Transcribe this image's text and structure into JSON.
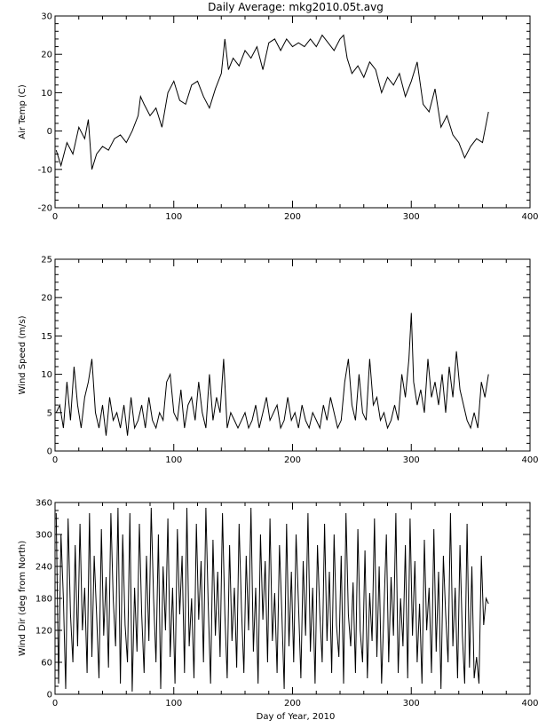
{
  "title": "Daily Average: mkg2010.05t.avg",
  "xlabel": "Day of Year, 2010",
  "chart_data": [
    {
      "type": "line",
      "ylabel": "Air Temp (C)",
      "xlim": [
        0,
        400
      ],
      "ylim": [
        -20,
        30
      ],
      "xticks": [
        0,
        100,
        200,
        300,
        400
      ],
      "yticks": [
        -20,
        -10,
        0,
        10,
        20,
        30
      ],
      "grid": false,
      "x": [
        1,
        5,
        10,
        15,
        20,
        25,
        28,
        31,
        35,
        40,
        45,
        50,
        55,
        60,
        65,
        70,
        72,
        75,
        80,
        85,
        90,
        95,
        100,
        105,
        110,
        115,
        120,
        125,
        130,
        135,
        140,
        143,
        146,
        150,
        155,
        160,
        165,
        170,
        175,
        180,
        185,
        190,
        195,
        200,
        205,
        210,
        215,
        220,
        225,
        230,
        235,
        240,
        243,
        246,
        250,
        255,
        260,
        265,
        270,
        275,
        280,
        285,
        290,
        295,
        300,
        305,
        310,
        315,
        320,
        325,
        330,
        335,
        340,
        345,
        350,
        355,
        360,
        365
      ],
      "y": [
        -5,
        -9,
        -3,
        -6,
        1,
        -2,
        3,
        -10,
        -6,
        -4,
        -5,
        -2,
        -1,
        -3,
        0,
        4,
        9,
        7,
        4,
        6,
        1,
        10,
        13,
        8,
        7,
        12,
        13,
        9,
        6,
        11,
        15,
        24,
        16,
        19,
        17,
        21,
        19,
        22,
        16,
        23,
        24,
        21,
        24,
        22,
        23,
        22,
        24,
        22,
        25,
        23,
        21,
        24,
        25,
        19,
        15,
        17,
        14,
        18,
        16,
        10,
        14,
        12,
        15,
        9,
        13,
        18,
        7,
        5,
        11,
        1,
        4,
        -1,
        -3,
        -7,
        -4,
        -2,
        -3,
        5
      ]
    },
    {
      "type": "line",
      "ylabel": "Wind Speed (m/s)",
      "xlim": [
        0,
        400
      ],
      "ylim": [
        0,
        25
      ],
      "xticks": [
        0,
        100,
        200,
        300,
        400
      ],
      "yticks": [
        0,
        5,
        10,
        15,
        20,
        25
      ],
      "grid": false,
      "x": [
        1,
        4,
        7,
        10,
        13,
        16,
        19,
        22,
        25,
        28,
        31,
        34,
        37,
        40,
        43,
        46,
        49,
        52,
        55,
        58,
        61,
        64,
        67,
        70,
        73,
        76,
        79,
        82,
        85,
        88,
        91,
        94,
        97,
        100,
        103,
        106,
        109,
        112,
        115,
        118,
        121,
        124,
        127,
        130,
        133,
        136,
        139,
        142,
        145,
        148,
        151,
        154,
        157,
        160,
        163,
        166,
        169,
        172,
        175,
        178,
        181,
        184,
        187,
        190,
        193,
        196,
        199,
        202,
        205,
        208,
        211,
        214,
        217,
        220,
        223,
        226,
        229,
        232,
        235,
        238,
        241,
        244,
        247,
        250,
        253,
        256,
        259,
        262,
        265,
        268,
        271,
        274,
        277,
        280,
        283,
        286,
        289,
        292,
        295,
        298,
        300,
        302,
        305,
        308,
        311,
        314,
        317,
        320,
        323,
        326,
        329,
        332,
        335,
        338,
        341,
        344,
        347,
        350,
        353,
        356,
        359,
        362,
        365
      ],
      "y": [
        5,
        6,
        3,
        9,
        4,
        11,
        6,
        3,
        7,
        9,
        12,
        5,
        3,
        6,
        2,
        7,
        4,
        5,
        3,
        6,
        2,
        7,
        3,
        4,
        6,
        3,
        7,
        4,
        3,
        5,
        4,
        9,
        10,
        5,
        4,
        8,
        3,
        6,
        7,
        4,
        9,
        5,
        3,
        10,
        4,
        7,
        5,
        12,
        3,
        5,
        4,
        3,
        4,
        5,
        3,
        4,
        6,
        3,
        5,
        7,
        4,
        5,
        6,
        3,
        4,
        7,
        4,
        5,
        3,
        6,
        4,
        3,
        5,
        4,
        3,
        6,
        4,
        7,
        5,
        3,
        4,
        9,
        12,
        6,
        4,
        10,
        5,
        4,
        12,
        6,
        7,
        4,
        5,
        3,
        4,
        6,
        4,
        10,
        7,
        12,
        18,
        9,
        6,
        8,
        5,
        12,
        7,
        9,
        6,
        10,
        5,
        11,
        7,
        13,
        8,
        6,
        4,
        3,
        5,
        3,
        9,
        7,
        10
      ]
    },
    {
      "type": "line",
      "ylabel": "Wind Dir (deg from North)",
      "xlim": [
        0,
        400
      ],
      "ylim": [
        0,
        360
      ],
      "xticks": [
        0,
        100,
        200,
        300,
        400
      ],
      "yticks": [
        0,
        60,
        120,
        180,
        240,
        300,
        360
      ],
      "grid": false,
      "x": [
        1,
        3,
        5,
        7,
        9,
        11,
        13,
        15,
        17,
        19,
        21,
        23,
        25,
        27,
        29,
        31,
        33,
        35,
        37,
        39,
        41,
        43,
        45,
        47,
        49,
        51,
        53,
        55,
        57,
        59,
        61,
        63,
        65,
        67,
        69,
        71,
        73,
        75,
        77,
        79,
        81,
        83,
        85,
        87,
        89,
        91,
        93,
        95,
        97,
        99,
        101,
        103,
        105,
        107,
        109,
        111,
        113,
        115,
        117,
        119,
        121,
        123,
        125,
        127,
        129,
        131,
        133,
        135,
        137,
        139,
        141,
        143,
        145,
        147,
        149,
        151,
        153,
        155,
        157,
        159,
        161,
        163,
        165,
        167,
        169,
        171,
        173,
        175,
        177,
        179,
        181,
        183,
        185,
        187,
        189,
        191,
        193,
        195,
        197,
        199,
        201,
        203,
        205,
        207,
        209,
        211,
        213,
        215,
        217,
        219,
        221,
        223,
        225,
        227,
        229,
        231,
        233,
        235,
        237,
        239,
        241,
        243,
        245,
        247,
        249,
        251,
        253,
        255,
        257,
        259,
        261,
        263,
        265,
        267,
        269,
        271,
        273,
        275,
        277,
        279,
        281,
        283,
        285,
        287,
        289,
        291,
        293,
        295,
        297,
        299,
        301,
        303,
        305,
        307,
        309,
        311,
        313,
        315,
        317,
        319,
        321,
        323,
        325,
        327,
        329,
        331,
        333,
        335,
        337,
        339,
        341,
        343,
        345,
        347,
        349,
        351,
        353,
        355,
        357,
        359,
        361,
        363,
        365
      ],
      "y": [
        340,
        20,
        300,
        180,
        10,
        330,
        150,
        60,
        280,
        90,
        320,
        120,
        200,
        40,
        340,
        70,
        260,
        150,
        30,
        310,
        110,
        220,
        50,
        340,
        180,
        90,
        350,
        20,
        300,
        130,
        60,
        340,
        5,
        200,
        80,
        320,
        150,
        40,
        260,
        100,
        350,
        180,
        60,
        300,
        10,
        240,
        120,
        330,
        70,
        200,
        20,
        310,
        150,
        260,
        40,
        350,
        90,
        180,
        30,
        320,
        140,
        250,
        60,
        350,
        170,
        20,
        290,
        110,
        230,
        70,
        340,
        150,
        30,
        280,
        100,
        200,
        50,
        320,
        160,
        40,
        260,
        120,
        350,
        80,
        200,
        20,
        300,
        140,
        250,
        60,
        330,
        100,
        190,
        40,
        280,
        150,
        10,
        320,
        90,
        230,
        60,
        300,
        170,
        30,
        250,
        110,
        340,
        80,
        200,
        20,
        280,
        150,
        60,
        320,
        100,
        230,
        40,
        300,
        130,
        70,
        260,
        20,
        340,
        150,
        90,
        210,
        40,
        310,
        120,
        60,
        270,
        30,
        190,
        100,
        330,
        70,
        240,
        20,
        160,
        300,
        60,
        220,
        110,
        340,
        40,
        180,
        90,
        280,
        30,
        330,
        110,
        250,
        60,
        170,
        20,
        290,
        120,
        200,
        40,
        310,
        80,
        230,
        10,
        260,
        150,
        60,
        340,
        90,
        200,
        30,
        280,
        110,
        20,
        320,
        50,
        240,
        30,
        70,
        20,
        260,
        130,
        180,
        170
      ]
    }
  ]
}
